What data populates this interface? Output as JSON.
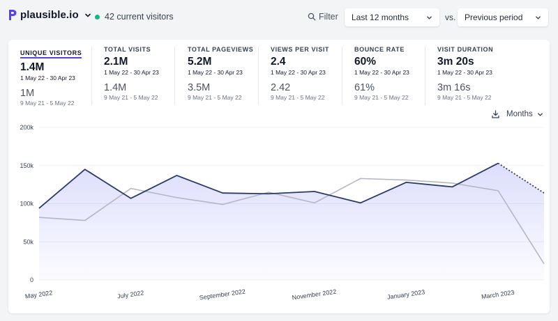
{
  "header": {
    "site_name": "plausible.io",
    "current_visitors": "42 current visitors",
    "filter_label": "Filter",
    "period_select": "Last 12 months",
    "vs_label": "vs.",
    "compare_select": "Previous period"
  },
  "colors": {
    "accent": "#4f46e5",
    "main_line": "#2b3a67",
    "prev_line": "#b4b6c4",
    "live_dot": "#10b981"
  },
  "metrics": [
    {
      "label": "UNIQUE VISITORS",
      "value": "1.4M",
      "range": "1 May 22 - 30 Apr 23",
      "prev_value": "1M",
      "prev_range": "9 May 21 - 5 May 22"
    },
    {
      "label": "TOTAL VISITS",
      "value": "2.1M",
      "range": "1 May 22 - 30 Apr 23",
      "prev_value": "1.4M",
      "prev_range": "9 May 21 - 5 May 22"
    },
    {
      "label": "TOTAL PAGEVIEWS",
      "value": "5.2M",
      "range": "1 May 22 - 30 Apr 23",
      "prev_value": "3.5M",
      "prev_range": "9 May 21 - 5 May 22"
    },
    {
      "label": "VIEWS PER VISIT",
      "value": "2.4",
      "range": "1 May 22 - 30 Apr 23",
      "prev_value": "2.42",
      "prev_range": "9 May 21 - 5 May 22"
    },
    {
      "label": "BOUNCE RATE",
      "value": "60%",
      "range": "1 May 22 - 30 Apr 23",
      "prev_value": "61%",
      "prev_range": "9 May 21 - 5 May 22"
    },
    {
      "label": "VISIT DURATION",
      "value": "3m 20s",
      "range": "1 May 22 - 30 Apr 23",
      "prev_value": "3m 16s",
      "prev_range": "9 May 21 - 5 May 22"
    }
  ],
  "interval_label": "Months",
  "chart_data": {
    "type": "line",
    "y_ticks": [
      "200k",
      "150k",
      "100k",
      "50k",
      "0"
    ],
    "ylim": [
      0,
      200000
    ],
    "x_labels": [
      "May 2022",
      "July 2022",
      "September 2022",
      "November 2022",
      "January 2023",
      "March 2023"
    ],
    "x_label_index": [
      0,
      2,
      4,
      6,
      8,
      10
    ],
    "categories": [
      "May 2022",
      "Jun 2022",
      "Jul 2022",
      "Aug 2022",
      "Sep 2022",
      "Oct 2022",
      "Nov 2022",
      "Dec 2022",
      "Jan 2023",
      "Feb 2023",
      "Mar 2023",
      "Apr 2023"
    ],
    "series": [
      {
        "values": [
          94000,
          145000,
          107000,
          137000,
          114000,
          113000,
          116000,
          101000,
          128000,
          122000,
          153000,
          114000
        ],
        "partial_last": true
      },
      {
        "values": [
          82000,
          78000,
          120000,
          108000,
          99000,
          115000,
          101000,
          133000,
          131000,
          127000,
          117000,
          21000
        ]
      }
    ]
  }
}
